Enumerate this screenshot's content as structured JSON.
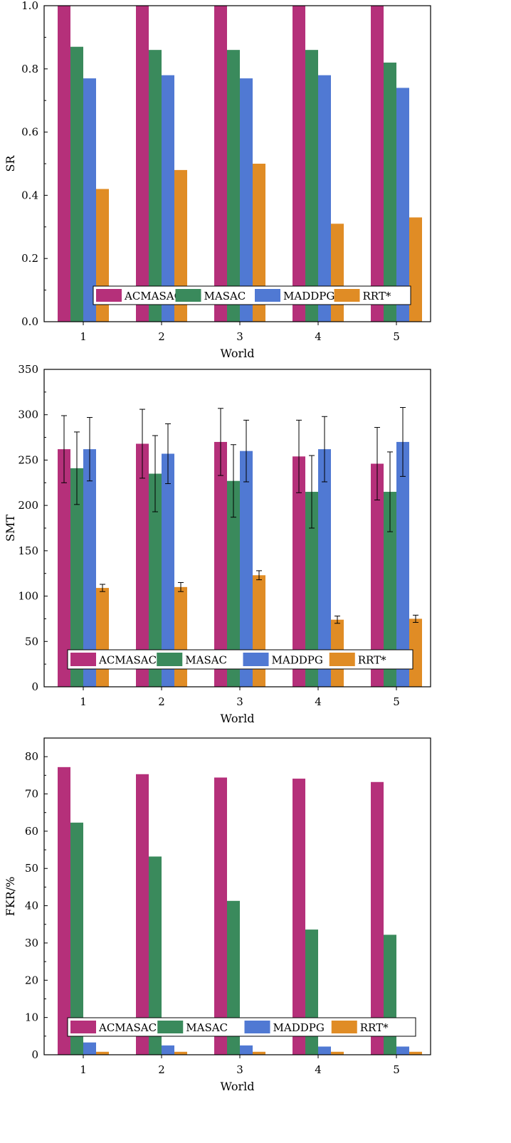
{
  "colors": {
    "ACMASAC": "#b5307a",
    "MASAC": "#3a8a5c",
    "MADDPG": "#5079d3",
    "RRT*": "#e08c25",
    "axis": "#000000",
    "background": "#ffffff"
  },
  "chart_data": [
    {
      "type": "bar",
      "title": "",
      "xlabel": "World",
      "ylabel": "SR",
      "categories": [
        "1",
        "2",
        "3",
        "4",
        "5"
      ],
      "ylim": [
        0,
        1.0
      ],
      "yticks": [
        "0.0",
        "0.2",
        "0.4",
        "0.6",
        "0.8",
        "1.0"
      ],
      "grid": false,
      "legend": "bottom-center",
      "series": [
        {
          "name": "ACMASAC",
          "values": [
            1.0,
            1.0,
            1.0,
            1.0,
            1.0
          ]
        },
        {
          "name": "MASAC",
          "values": [
            0.87,
            0.86,
            0.86,
            0.86,
            0.82
          ]
        },
        {
          "name": "MADDPG",
          "values": [
            0.77,
            0.78,
            0.77,
            0.78,
            0.74
          ]
        },
        {
          "name": "RRT*",
          "values": [
            0.42,
            0.48,
            0.5,
            0.31,
            0.33
          ]
        }
      ]
    },
    {
      "type": "bar",
      "title": "",
      "xlabel": "World",
      "ylabel": "SMT",
      "categories": [
        "1",
        "2",
        "3",
        "4",
        "5"
      ],
      "ylim": [
        0,
        350
      ],
      "yticks": [
        "0",
        "50",
        "100",
        "150",
        "200",
        "250",
        "300",
        "350"
      ],
      "grid": false,
      "legend": "bottom-center",
      "series": [
        {
          "name": "ACMASAC",
          "values": [
            262,
            268,
            270,
            254,
            246
          ],
          "errors": [
            37,
            38,
            37,
            40,
            40
          ]
        },
        {
          "name": "MASAC",
          "values": [
            241,
            235,
            227,
            215,
            215
          ],
          "errors": [
            40,
            42,
            40,
            40,
            44
          ]
        },
        {
          "name": "MADDPG",
          "values": [
            262,
            257,
            260,
            262,
            270
          ],
          "errors": [
            35,
            33,
            34,
            36,
            38
          ]
        },
        {
          "name": "RRT*",
          "values": [
            109,
            110,
            123,
            74,
            75
          ],
          "errors": [
            4,
            5,
            5,
            4,
            4
          ]
        }
      ]
    },
    {
      "type": "bar",
      "title": "",
      "xlabel": "World",
      "ylabel": "FKR/%",
      "categories": [
        "1",
        "2",
        "3",
        "4",
        "5"
      ],
      "ylim": [
        0,
        85
      ],
      "yticks": [
        "0",
        "10",
        "20",
        "30",
        "40",
        "50",
        "60",
        "70",
        "80"
      ],
      "grid": false,
      "legend": "bottom-center",
      "series": [
        {
          "name": "ACMASAC",
          "values": [
            77.2,
            75.3,
            74.4,
            74.1,
            73.2
          ]
        },
        {
          "name": "MASAC",
          "values": [
            62.3,
            53.2,
            41.3,
            33.6,
            32.2
          ]
        },
        {
          "name": "MADDPG",
          "values": [
            3.3,
            2.5,
            2.5,
            2.2,
            2.2
          ]
        },
        {
          "name": "RRT*",
          "values": [
            0.8,
            0.8,
            0.8,
            0.8,
            0.8
          ]
        }
      ]
    }
  ]
}
